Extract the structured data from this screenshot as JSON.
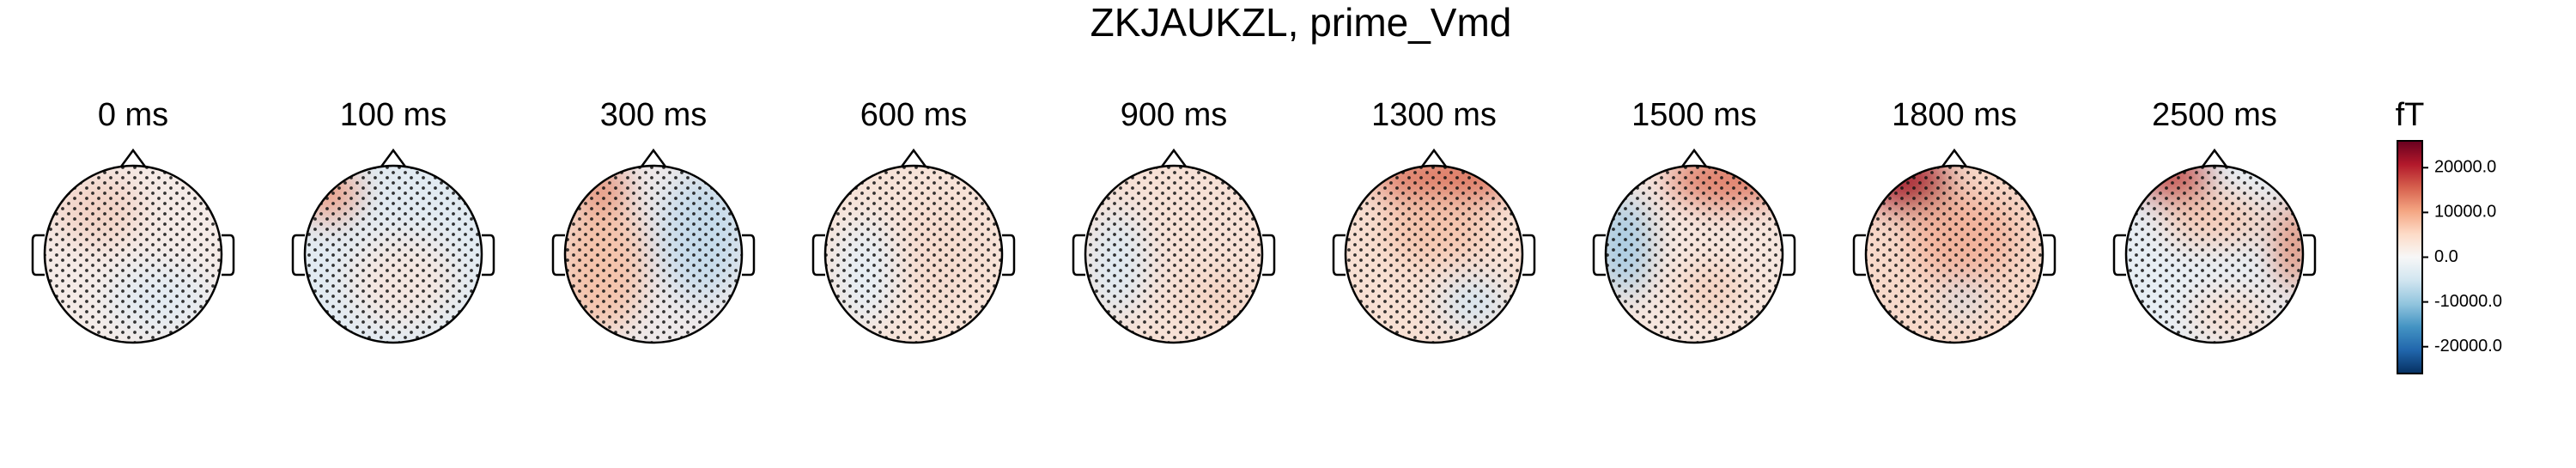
{
  "chart_data": {
    "type": "topomap",
    "title": "ZKJAUKZL, prime_Vmd",
    "panels": [
      "0 ms",
      "100 ms",
      "300 ms",
      "600 ms",
      "900 ms",
      "1300 ms",
      "1500 ms",
      "1800 ms",
      "2500 ms"
    ],
    "colorbar": {
      "label": "fT",
      "lim": [
        -26000,
        26000
      ],
      "ticks": [
        {
          "value": 20000,
          "label": "20000.0"
        },
        {
          "value": 10000,
          "label": "10000.0"
        },
        {
          "value": 0,
          "label": "0.0"
        },
        {
          "value": -10000,
          "label": "-10000.0"
        },
        {
          "value": -20000,
          "label": "-20000.0"
        }
      ],
      "colors": [
        "#053061",
        "#2166ac",
        "#4393c3",
        "#92c5de",
        "#d1e5f0",
        "#f7f7f7",
        "#fddbc7",
        "#f4a582",
        "#d6604d",
        "#b2182b",
        "#67001f"
      ]
    }
  }
}
